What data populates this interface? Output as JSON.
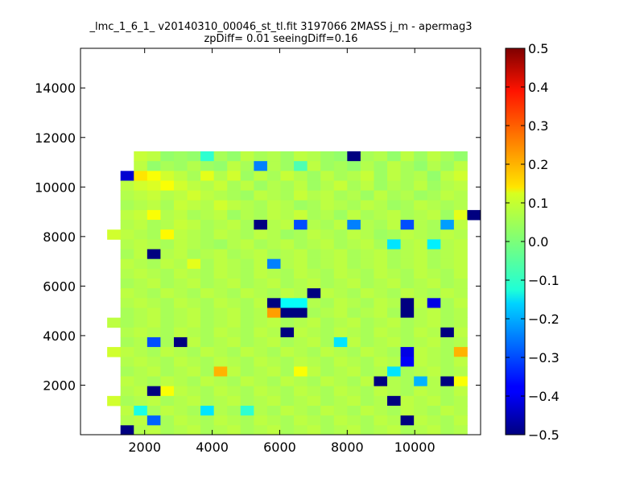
{
  "chart_data": {
    "type": "heatmap",
    "title_lines": [
      "_lmc_1_6_1_ v20140310_00046_st_tl.fit 3197066 2MASS j_m - apermag3",
      "zpDiff= 0.01 seeingDiff=0.16"
    ],
    "xlabel": "",
    "ylabel": "",
    "xlim": [
      100,
      11950
    ],
    "ylim": [
      0,
      15600
    ],
    "xticks": [
      2000,
      4000,
      6000,
      8000,
      10000
    ],
    "xtick_labels": [
      "2000",
      "4000",
      "6000",
      "8000",
      "10000"
    ],
    "yticks": [
      2000,
      4000,
      6000,
      8000,
      10000,
      12000,
      14000
    ],
    "ytick_labels": [
      "2000",
      "4000",
      "6000",
      "8000",
      "10000",
      "12000",
      "14000"
    ],
    "cell_size": 395,
    "x_origin": 100,
    "y_origin": -15,
    "grid": false,
    "legend": "none",
    "colormap": "jet",
    "clim": [
      -0.5,
      0.5
    ],
    "colorbar_ticks": [
      0.5,
      0.4,
      0.3,
      0.2,
      0.1,
      0.0,
      -0.1,
      -0.2,
      -0.3,
      -0.4,
      -0.5
    ],
    "colorbar_tick_labels": [
      "0.5",
      "0.4",
      "0.3",
      "0.2",
      "0.1",
      "0.0",
      "−0.1",
      "−0.2",
      "−0.3",
      "−0.4",
      "−0.5"
    ],
    "rows": [
      [
        "",
        "",
        "",
        "",
        "",
        "",
        "",
        "",
        "",
        "",
        "",
        "",
        "",
        "",
        "",
        "",
        "",
        "",
        "",
        "",
        "",
        "",
        "",
        "",
        "",
        "",
        "",
        "",
        "",
        ""
      ],
      [
        "",
        "",
        "",
        "",
        ".07",
        ".06",
        ".02",
        ".03",
        ".02",
        "-.08",
        ".04",
        ".02",
        ".06",
        ".04",
        ".05",
        ".03",
        ".06",
        ".05",
        ".03",
        ".02",
        "-.5",
        ".04",
        ".05",
        ".02",
        ".06",
        ".03",
        ".06",
        ".04",
        ".02",
        ""
      ],
      [
        "",
        "",
        "",
        "",
        ".06",
        ".02",
        ".04",
        ".03",
        ".05",
        ".03",
        ".02",
        ".06",
        ".04",
        "-.25",
        ".05",
        ".03",
        "-.05",
        ".06",
        ".03",
        ".04",
        ".02",
        ".05",
        ".03",
        ".06",
        ".04",
        ".02",
        ".05",
        ".03",
        ".06",
        ""
      ],
      [
        "",
        "",
        "",
        "-.42",
        ".15",
        ".12",
        ".08",
        ".06",
        ".04",
        ".10",
        ".05",
        ".08",
        ".03",
        ".06",
        ".04",
        ".07",
        ".05",
        ".03",
        ".06",
        ".04",
        ".05",
        ".07",
        ".03",
        ".06",
        ".04",
        ".05",
        ".02",
        ".06",
        ".08",
        ""
      ],
      [
        "",
        "",
        "",
        ".06",
        ".08",
        ".09",
        ".12",
        ".08",
        ".06",
        ".05",
        ".07",
        ".04",
        ".06",
        ".03",
        ".05",
        ".04",
        ".06",
        ".03",
        ".05",
        ".07",
        ".04",
        ".06",
        ".03",
        ".05",
        ".04",
        ".06",
        ".03",
        ".05",
        ".06",
        ""
      ],
      [
        "",
        "",
        "",
        ".05",
        ".06",
        ".07",
        ".05",
        ".06",
        ".08",
        ".06",
        ".05",
        ".04",
        ".03",
        ".06",
        ".05",
        ".04",
        ".07",
        ".05",
        ".06",
        ".04",
        ".05",
        ".03",
        ".06",
        ".04",
        ".05",
        ".03",
        ".04",
        ".06",
        ".05",
        ""
      ],
      [
        "",
        "",
        "",
        ".04",
        ".05",
        ".06",
        ".04",
        ".07",
        ".06",
        ".05",
        ".08",
        ".06",
        ".05",
        ".04",
        ".06",
        ".05",
        ".03",
        ".04",
        ".06",
        ".05",
        ".04",
        ".06",
        ".05",
        ".03",
        ".04",
        ".06",
        ".05",
        ".04",
        ".05",
        ""
      ],
      [
        "",
        "",
        "",
        ".06",
        ".07",
        ".12",
        ".05",
        ".06",
        ".04",
        ".05",
        ".06",
        ".03",
        ".05",
        ".04",
        ".06",
        ".05",
        ".07",
        ".04",
        ".05",
        ".03",
        ".06",
        ".04",
        ".05",
        ".06",
        ".04",
        ".05",
        ".06",
        ".03",
        ".10",
        "-.5"
      ],
      [
        "",
        "",
        "",
        ".05",
        ".06",
        ".04",
        ".05",
        ".07",
        ".06",
        ".04",
        ".05",
        ".06",
        ".04",
        "-.5",
        ".05",
        ".06",
        "-.3",
        ".05",
        ".04",
        ".06",
        "-.25",
        ".05",
        ".04",
        ".06",
        "-.3",
        ".05",
        ".04",
        "-.22",
        ".06",
        ""
      ],
      [
        "",
        "",
        ".08",
        ".06",
        ".05",
        ".04",
        ".13",
        ".06",
        ".05",
        ".04",
        ".06",
        ".05",
        ".04",
        ".06",
        ".05",
        ".03",
        ".04",
        ".06",
        ".05",
        ".04",
        ".06",
        ".05",
        ".03",
        ".04",
        ".06",
        ".05",
        ".04",
        ".06",
        ".05",
        ""
      ],
      [
        "",
        "",
        "",
        ".05",
        ".06",
        ".05",
        ".04",
        ".06",
        ".05",
        ".04",
        ".03",
        ".05",
        ".06",
        ".04",
        ".05",
        ".06",
        ".04",
        ".05",
        ".06",
        ".04",
        ".05",
        ".06",
        ".04",
        "-.15",
        ".05",
        ".06",
        "-.14",
        ".05",
        ".06",
        ""
      ],
      [
        "",
        "",
        "",
        ".04",
        ".06",
        "-.5",
        ".05",
        ".06",
        ".04",
        ".05",
        ".06",
        ".04",
        ".05",
        ".06",
        ".04",
        ".05",
        ".06",
        ".04",
        ".05",
        ".06",
        ".04",
        ".05",
        ".06",
        ".04",
        ".05",
        ".06",
        ".04",
        ".05",
        ".06",
        ""
      ],
      [
        "",
        "",
        "",
        ".06",
        ".05",
        ".04",
        ".06",
        ".05",
        ".10",
        ".04",
        ".06",
        ".05",
        ".04",
        ".06",
        "-.25",
        ".05",
        ".06",
        ".04",
        ".05",
        ".06",
        ".04",
        ".05",
        ".06",
        ".04",
        ".05",
        ".06",
        ".04",
        ".05",
        ".06",
        ""
      ],
      [
        "",
        "",
        "",
        ".05",
        ".06",
        ".05",
        ".04",
        ".06",
        ".05",
        ".04",
        ".06",
        ".05",
        ".04",
        ".06",
        ".05",
        ".04",
        ".06",
        ".05",
        ".04",
        ".06",
        ".05",
        ".04",
        ".06",
        ".05",
        ".04",
        ".06",
        ".05",
        ".04",
        ".06",
        ""
      ],
      [
        "",
        "",
        "",
        ".04",
        ".05",
        ".06",
        ".04",
        ".05",
        ".06",
        ".04",
        ".05",
        ".06",
        ".04",
        ".05",
        ".06",
        ".04",
        ".05",
        ".06",
        ".04",
        ".05",
        ".06",
        ".04",
        ".05",
        ".06",
        ".04",
        ".05",
        ".06",
        ".04",
        ".05",
        ""
      ],
      [
        "",
        "",
        "",
        ".06",
        ".05",
        ".04",
        ".06",
        ".05",
        ".04",
        ".06",
        ".05",
        ".04",
        ".06",
        ".05",
        ".04",
        ".06",
        ".05",
        "-.5",
        ".06",
        ".05",
        ".04",
        ".06",
        ".05",
        ".04",
        ".06",
        ".05",
        ".04",
        ".06",
        ".05",
        ""
      ],
      [
        "",
        "",
        "",
        ".05",
        ".06",
        ".05",
        ".04",
        ".06",
        ".05",
        ".04",
        ".06",
        ".05",
        ".04",
        ".06",
        "-.5",
        "-.12",
        "-.12",
        ".05",
        ".04",
        ".06",
        ".05",
        ".04",
        ".06",
        ".05",
        "-.5",
        ".06",
        "-.4",
        ".04",
        ".06",
        ""
      ],
      [
        "",
        "",
        "",
        ".04",
        ".05",
        ".06",
        ".04",
        ".05",
        ".06",
        ".04",
        ".05",
        ".06",
        ".04",
        ".05",
        ".22",
        "-.5",
        "-.5",
        ".04",
        ".05",
        ".06",
        ".04",
        ".05",
        ".06",
        ".04",
        "-.5",
        ".05",
        ".06",
        ".04",
        ".05",
        ""
      ],
      [
        "",
        "",
        ".06",
        ".04",
        ".05",
        ".06",
        ".04",
        ".05",
        ".06",
        ".04",
        ".05",
        ".06",
        ".04",
        ".05",
        ".06",
        ".04",
        ".05",
        ".06",
        ".04",
        ".05",
        ".06",
        ".04",
        ".05",
        ".06",
        ".04",
        ".05",
        ".06",
        ".04",
        ".05",
        ""
      ],
      [
        "",
        "",
        "",
        ".05",
        ".06",
        ".05",
        ".04",
        ".06",
        ".05",
        ".04",
        ".06",
        ".05",
        ".04",
        ".06",
        ".05",
        "-.5",
        ".06",
        ".05",
        ".04",
        ".06",
        ".05",
        ".04",
        ".06",
        ".05",
        ".04",
        ".06",
        ".05",
        "-.5",
        ".06",
        ""
      ],
      [
        "",
        "",
        "",
        ".04",
        ".05",
        "-.3",
        ".04",
        "-.5",
        ".06",
        ".04",
        ".05",
        ".06",
        ".04",
        ".05",
        ".06",
        ".04",
        ".05",
        ".06",
        ".04",
        "-.15",
        ".06",
        ".04",
        ".05",
        ".06",
        ".04",
        ".05",
        ".06",
        ".04",
        ".05",
        ""
      ],
      [
        "",
        "",
        ".08",
        ".06",
        ".05",
        ".04",
        ".06",
        ".05",
        ".04",
        ".06",
        ".05",
        ".04",
        ".06",
        ".05",
        ".04",
        ".06",
        ".05",
        ".04",
        ".06",
        ".05",
        ".04",
        ".06",
        ".05",
        ".04",
        "-.4",
        ".06",
        ".05",
        ".04",
        ".20",
        ""
      ],
      [
        "",
        "",
        "",
        ".05",
        ".06",
        ".05",
        ".04",
        ".06",
        ".05",
        ".04",
        ".06",
        ".05",
        ".04",
        ".06",
        ".05",
        ".04",
        ".06",
        ".05",
        ".04",
        ".06",
        ".05",
        ".04",
        ".06",
        ".05",
        "-.38",
        ".06",
        ".05",
        ".04",
        ".06",
        ""
      ],
      [
        "",
        "",
        "",
        ".04",
        ".05",
        ".06",
        ".04",
        ".05",
        ".06",
        ".04",
        ".20",
        ".06",
        ".04",
        ".05",
        ".06",
        ".04",
        ".12",
        ".06",
        ".04",
        ".05",
        ".06",
        ".04",
        ".05",
        "-.15",
        ".04",
        ".05",
        ".06",
        ".04",
        ".05",
        ""
      ],
      [
        "",
        "",
        "",
        ".06",
        ".05",
        ".04",
        ".06",
        ".05",
        ".04",
        ".06",
        ".05",
        ".04",
        ".06",
        ".05",
        ".04",
        ".06",
        ".05",
        ".04",
        ".06",
        ".05",
        ".04",
        ".06",
        "-.5",
        ".05",
        ".04",
        "-.2",
        ".05",
        "-.5",
        ".12",
        ""
      ],
      [
        "",
        "",
        "",
        ".05",
        ".06",
        "-.5",
        ".12",
        ".06",
        ".05",
        ".04",
        ".06",
        ".05",
        ".04",
        ".06",
        ".05",
        ".04",
        ".06",
        ".05",
        ".04",
        ".06",
        ".05",
        ".04",
        ".06",
        ".05",
        ".04",
        ".06",
        ".05",
        ".04",
        ".06",
        ""
      ],
      [
        "",
        "",
        ".08",
        ".04",
        ".05",
        ".06",
        ".04",
        ".05",
        ".06",
        ".04",
        ".05",
        ".06",
        ".04",
        ".05",
        ".06",
        ".04",
        ".05",
        ".06",
        ".04",
        ".05",
        ".06",
        ".04",
        ".05",
        "-.5",
        ".06",
        ".05",
        ".06",
        ".04",
        ".05",
        ""
      ],
      [
        "",
        "",
        "",
        ".06",
        "-.1",
        ".04",
        ".06",
        ".05",
        ".04",
        "-.15",
        ".05",
        ".04",
        "-.08",
        ".05",
        ".04",
        ".06",
        ".05",
        ".04",
        ".06",
        ".05",
        ".04",
        ".06",
        ".05",
        ".04",
        ".06",
        ".05",
        ".04",
        ".06",
        ".05",
        ""
      ],
      [
        "",
        "",
        "",
        ".05",
        ".06",
        "-.28",
        ".04",
        ".06",
        ".05",
        ".04",
        ".06",
        ".05",
        ".04",
        ".06",
        ".05",
        ".04",
        ".06",
        ".05",
        ".04",
        ".06",
        ".05",
        ".04",
        ".06",
        ".05",
        "-.5",
        ".06",
        ".05",
        ".04",
        ".06",
        ""
      ],
      [
        "",
        "",
        "",
        "-.5",
        ".05",
        ".06",
        ".04",
        ".05",
        ".06",
        ".04",
        ".05",
        ".06",
        ".04",
        ".05",
        ".06",
        ".04",
        ".05",
        ".06",
        ".04",
        ".05",
        ".06",
        ".04",
        ".05",
        ".06",
        ".04",
        ".05",
        ".06",
        ".04",
        ".05",
        ""
      ]
    ]
  }
}
